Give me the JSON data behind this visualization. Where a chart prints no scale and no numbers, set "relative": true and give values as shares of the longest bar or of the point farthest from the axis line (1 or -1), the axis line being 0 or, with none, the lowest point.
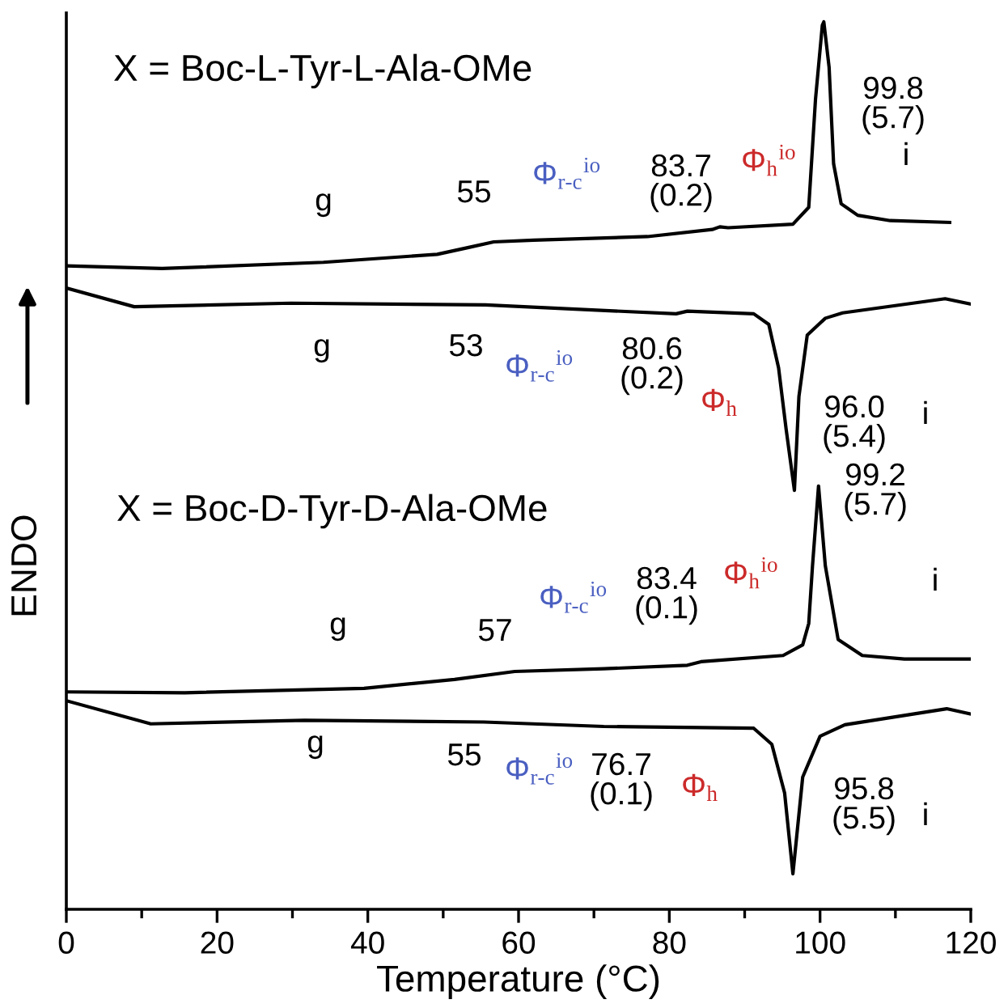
{
  "chart_data": {
    "type": "line",
    "relative": true,
    "xlabel": "Temperature (°C)",
    "ylabel": "ENDO",
    "xlim": [
      0,
      120
    ],
    "xticks": [
      0,
      20,
      40,
      60,
      80,
      100,
      120
    ],
    "series": [
      {
        "color": "#000000",
        "x": [
          0,
          12.7,
          34.1,
          49.2,
          53.5,
          56.7,
          62.0,
          77.1,
          85.7,
          86.7,
          87.8,
          96.4,
          98.5,
          99.4,
          100.3,
          100.5,
          101.2,
          101.8,
          102.8,
          105.0,
          109.3,
          117.2
        ],
        "values": [
          0.725,
          0.722,
          0.729,
          0.738,
          0.746,
          0.752,
          0.754,
          0.758,
          0.766,
          0.769,
          0.768,
          0.772,
          0.791,
          0.913,
          0.996,
          1.0,
          0.949,
          0.84,
          0.795,
          0.782,
          0.776,
          0.774
        ]
      },
      {
        "color": "#000000",
        "x": [
          0,
          9.0,
          29.8,
          55.6,
          80.9,
          82.4,
          91.2,
          93.2,
          94.5,
          95.5,
          96.6,
          97.2,
          98.3,
          100.7,
          103.0,
          116.6,
          120
        ],
        "values": [
          0.7,
          0.679,
          0.683,
          0.681,
          0.671,
          0.674,
          0.671,
          0.659,
          0.61,
          0.541,
          0.472,
          0.578,
          0.647,
          0.666,
          0.672,
          0.688,
          0.682
        ]
      },
      {
        "color": "#000000",
        "x": [
          0,
          15.7,
          39.5,
          51.5,
          59.5,
          71.3,
          82.4,
          84.2,
          95.1,
          97.7,
          98.5,
          99.0,
          99.8,
          100.7,
          102.4,
          105.6,
          111.2,
          119.8
        ],
        "values": [
          0.245,
          0.244,
          0.249,
          0.259,
          0.268,
          0.271,
          0.275,
          0.279,
          0.286,
          0.298,
          0.322,
          0.387,
          0.477,
          0.387,
          0.304,
          0.286,
          0.282,
          0.282
        ]
      },
      {
        "color": "#000000",
        "x": [
          0,
          11.2,
          31.6,
          55.4,
          71.3,
          91.2,
          93.6,
          95.3,
          96.4,
          97.7,
          100.0,
          103.3,
          116.8,
          120
        ],
        "values": [
          0.235,
          0.209,
          0.213,
          0.211,
          0.206,
          0.204,
          0.186,
          0.131,
          0.04,
          0.149,
          0.195,
          0.208,
          0.226,
          0.22
        ]
      }
    ],
    "annotations": [
      "X = Boc-L-Tyr-L-Ala-OMe",
      "X = Boc-D-Tyr-D-Ala-OMe",
      "g",
      "55",
      "Φ$_{r-c}$$^{io}$",
      "83.7\n(0.2)",
      "Φ$_{h}$$^{io}$",
      "99.8\n(5.7)",
      "i",
      "g",
      "53",
      "Φ$_{r-c}$$^{io}$",
      "80.6\n(0.2)",
      "Φ$_{h}$",
      "96.0\n(5.4)",
      "i",
      "g",
      "57",
      "Φ$_{r-c}$$^{io}$",
      "83.4\n(0.1)",
      "Φ$_{h}$$^{io}$",
      "99.2\n(5.7)",
      "i",
      "g",
      "55",
      "Φ$_{r-c}$$^{io}$",
      "76.7\n(0.1)",
      "Φ$_{h}$",
      "95.8\n(5.5)",
      "i"
    ]
  }
}
